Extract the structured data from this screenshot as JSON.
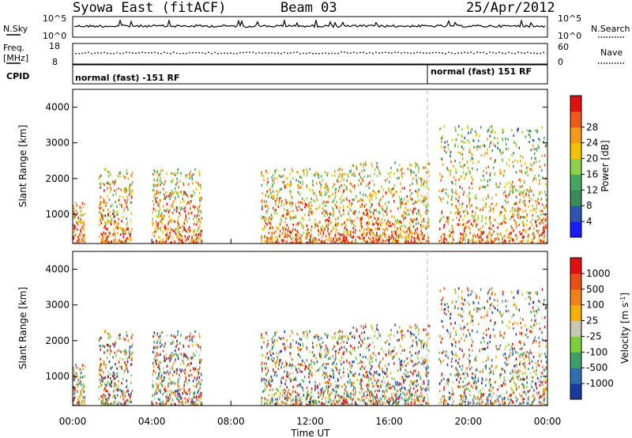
{
  "header": {
    "station": "Syowa East (fitACF)",
    "beam": "Beam 03",
    "date": "25/Apr/2012"
  },
  "strips": {
    "nsky_label": "N.Sky",
    "nsky_ticks": [
      "10^5",
      "10^0"
    ],
    "nsearch_label": "N.Search",
    "nsearch_ticks": [
      "10^5",
      "10^0"
    ],
    "freq_label_1": "Freq.",
    "freq_label_2": "[MHz]",
    "freq_ticks": [
      "18",
      "8"
    ],
    "nave_label": "Nave",
    "nave_ticks": [
      "60",
      "0"
    ],
    "cpid_label": "CPID",
    "cpid_segments": [
      "normal (fast) -151 RF",
      "normal (fast) 151 RF"
    ]
  },
  "chart_data": [
    {
      "type": "heatmap",
      "panel": "power",
      "ylabel": "Slant Range [km]",
      "yticks": [
        "1000",
        "2000",
        "3000",
        "4000"
      ],
      "ylim": [
        180,
        4500
      ],
      "xlim_hours": [
        0,
        24
      ],
      "colorbar": {
        "label": "Power [dB]",
        "ticks": [
          "4",
          "8",
          "12",
          "16",
          "20",
          "24",
          "28"
        ],
        "colors": [
          "#1a1aff",
          "#2a55b0",
          "#3a8a5a",
          "#45a860",
          "#8bd14a",
          "#f2c200",
          "#f59a1a",
          "#ec5a1a",
          "#e01010"
        ]
      },
      "scatter_regions": [
        {
          "t": [
            0.0,
            0.6
          ],
          "r": [
            180,
            1400
          ],
          "level": "mixed"
        },
        {
          "t": [
            1.3,
            3.0
          ],
          "r": [
            180,
            2300
          ],
          "level": "mixed"
        },
        {
          "t": [
            4.0,
            6.5
          ],
          "r": [
            180,
            2300
          ],
          "level": "mixed"
        },
        {
          "t": [
            9.5,
            14.0
          ],
          "r": [
            180,
            2300
          ],
          "level": "mixed"
        },
        {
          "t": [
            14.0,
            18.0
          ],
          "r": [
            180,
            2500
          ],
          "level": "mixed"
        },
        {
          "t": [
            18.5,
            24.0
          ],
          "r": [
            180,
            3500
          ],
          "level": "mixed"
        }
      ]
    },
    {
      "type": "heatmap",
      "panel": "velocity",
      "ylabel": "Slant Range [km]",
      "yticks": [
        "1000",
        "2000",
        "3000",
        "4000"
      ],
      "ylim": [
        180,
        4500
      ],
      "xlim_hours": [
        0,
        24
      ],
      "xticks": [
        "00:00",
        "04:00",
        "08:00",
        "12:00",
        "16:00",
        "20:00",
        "00:00"
      ],
      "xlabel": "Time UT",
      "colorbar": {
        "label": "Velocity [m s",
        "label_sup": "-1",
        "label_end": "]",
        "ticks": [
          "1000",
          "500",
          "100",
          "25",
          "-25",
          "-100",
          "-500",
          "-1000"
        ],
        "colors": [
          "#1a3aa0",
          "#2f6fb0",
          "#3f9f6a",
          "#7ccf3a",
          "#c9c7b0",
          "#f5b000",
          "#f0801a",
          "#e8501a",
          "#e01010"
        ]
      }
    }
  ]
}
